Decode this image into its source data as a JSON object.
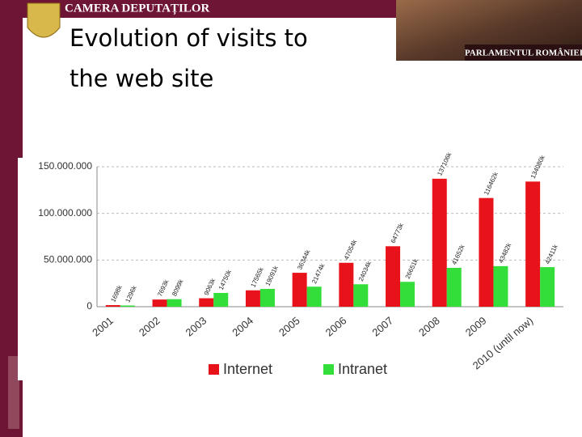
{
  "header": {
    "institution": "CAMERA DEPUTAȚILOR",
    "parliament": "PARLAMENTUL ROMÂNIEI"
  },
  "chart_data": {
    "type": "bar",
    "title": "Evolution of visits to the web site",
    "categories": [
      "2001",
      "2002",
      "2003",
      "2004",
      "2005",
      "2006",
      "2007",
      "2008",
      "2009",
      "2010 (until now)"
    ],
    "series": [
      {
        "name": "Internet",
        "color": "#e8121a",
        "values": [
          1698000,
          7693000,
          9063000,
          17565000,
          36344000,
          47054000,
          64773000,
          137106000,
          116462000,
          134080000
        ],
        "value_labels": [
          "1698k",
          "7693k",
          "9063k",
          "17565k",
          "36344k",
          "47054k",
          "64773k",
          "137106k",
          "116462k",
          "134080k"
        ]
      },
      {
        "name": "Intranet",
        "color": "#33dd3a",
        "values": [
          1296000,
          8099000,
          14750000,
          19091000,
          21474000,
          24034000,
          26651000,
          41652000,
          43482000,
          42411000
        ],
        "value_labels": [
          "1296k",
          "8099k",
          "14750k",
          "19091k",
          "21474k",
          "24034k",
          "26651k",
          "41652k",
          "43482k",
          "42411k"
        ]
      }
    ],
    "ylim": [
      0,
      150000000
    ],
    "yticks": [
      {
        "value": 0,
        "label": "0"
      },
      {
        "value": 50000000,
        "label": "50.000.000"
      },
      {
        "value": 100000000,
        "label": "100.000.000"
      },
      {
        "value": 150000000,
        "label": "150.000.000"
      }
    ],
    "grid": true,
    "legend": "bottom"
  }
}
